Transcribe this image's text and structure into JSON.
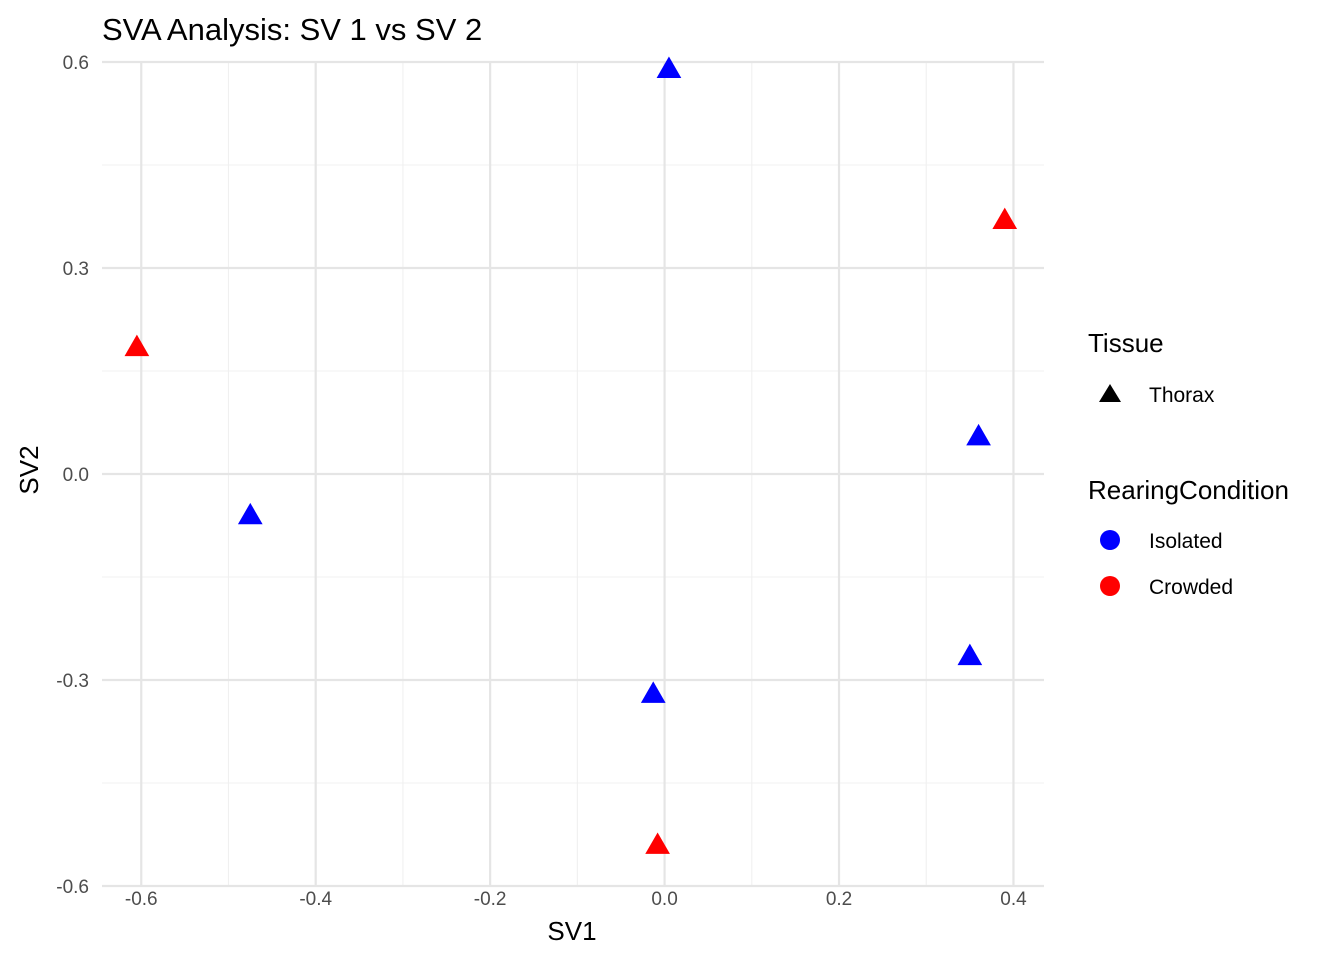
{
  "chart_data": {
    "type": "scatter",
    "title": "SVA Analysis: SV 1  vs SV 2",
    "xlabel": "SV1",
    "ylabel": "SV2",
    "xlim": [
      -0.645,
      0.435
    ],
    "ylim": [
      -0.6,
      0.6
    ],
    "x_ticks": [
      -0.6,
      -0.4,
      -0.2,
      0.0,
      0.2,
      0.4
    ],
    "x_tick_labels": [
      "-0.6",
      "-0.4",
      "-0.2",
      "0.0",
      "0.2",
      "0.4"
    ],
    "y_ticks": [
      0.6,
      0.3,
      0.0,
      -0.3,
      -0.6
    ],
    "y_tick_labels": [
      "0.6",
      "0.3",
      "0.0",
      "-0.3",
      "-0.6"
    ],
    "grid": true,
    "legend_position": "right",
    "series": [
      {
        "name": "Isolated",
        "color": "#0000ff",
        "shape": "triangle",
        "points": [
          {
            "x": 0.005,
            "y": 0.59
          },
          {
            "x": 0.36,
            "y": 0.055
          },
          {
            "x": -0.475,
            "y": -0.06
          },
          {
            "x": 0.35,
            "y": -0.265
          },
          {
            "x": -0.013,
            "y": -0.32
          }
        ]
      },
      {
        "name": "Crowded",
        "color": "#ff0000",
        "shape": "triangle",
        "points": [
          {
            "x": 0.39,
            "y": 0.37
          },
          {
            "x": -0.605,
            "y": 0.185
          },
          {
            "x": -0.008,
            "y": -0.54
          }
        ]
      }
    ]
  },
  "legend": {
    "tissue_title": "Tissue",
    "tissue_items": [
      {
        "label": "Thorax",
        "color": "#000000",
        "icon": "triangle-icon"
      }
    ],
    "rearing_title": "RearingCondition",
    "rearing_items": [
      {
        "label": "Isolated",
        "color": "#0000ff",
        "icon": "circle-icon"
      },
      {
        "label": "Crowded",
        "color": "#ff0000",
        "icon": "circle-icon"
      }
    ]
  }
}
